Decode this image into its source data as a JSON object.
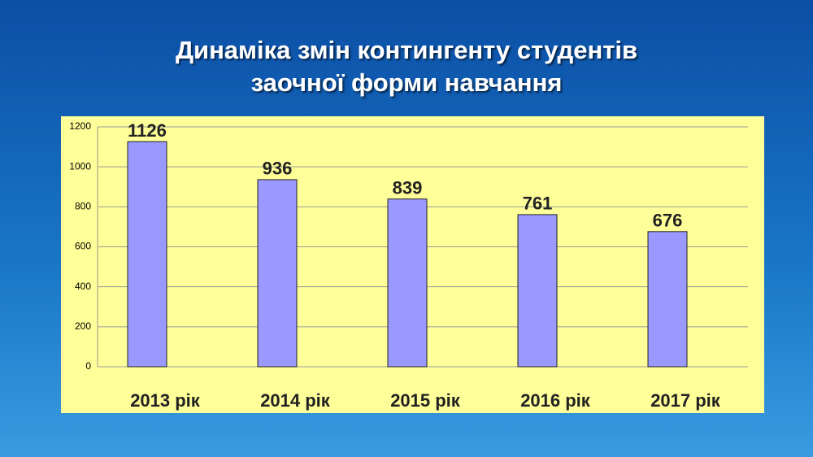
{
  "chart_data": {
    "type": "bar",
    "title": [
      "Динаміка змін контингенту студентів",
      "заочної форми навчання"
    ],
    "categories": [
      "2013 рік",
      "2014 рік",
      "2015 рік",
      "2016 рік",
      "2017 рік"
    ],
    "values": [
      1126,
      936,
      839,
      761,
      676
    ],
    "color": "#9999ff",
    "ylim": [
      0,
      1200
    ],
    "yticks": [
      0,
      200,
      400,
      600,
      800,
      1000,
      1200
    ],
    "grid": true
  }
}
